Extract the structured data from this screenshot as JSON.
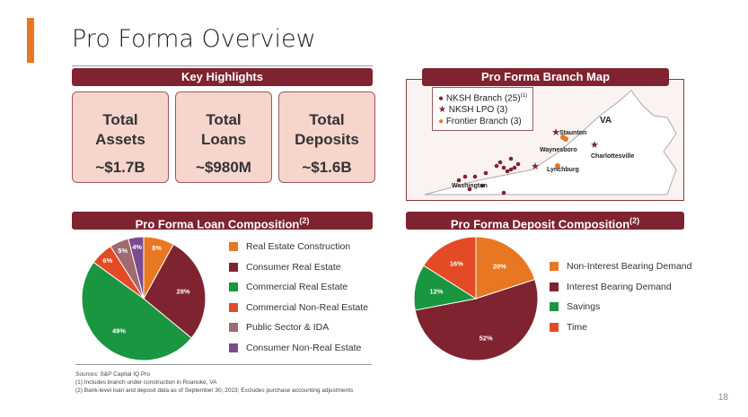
{
  "title": "Pro Forma Overview",
  "page_number": "18",
  "highlights": {
    "header": "Key Highlights",
    "items": [
      {
        "label1": "Total",
        "label2": "Assets",
        "value": "~$1.7B"
      },
      {
        "label1": "Total",
        "label2": "Loans",
        "value": "~$980M"
      },
      {
        "label1": "Total",
        "label2": "Deposits",
        "value": "~$1.6B"
      }
    ]
  },
  "map": {
    "header": "Pro Forma Branch Map",
    "legend": [
      {
        "label": "NKSH Branch (25)",
        "sup": "(1)",
        "color": "#7f2330"
      },
      {
        "label": "NKSH LPO (3)",
        "color": "#7f2330"
      },
      {
        "label": "Frontier Branch (3)",
        "color": "#e87722"
      }
    ],
    "labels": {
      "state": "VA",
      "staunton": "Staunton",
      "waynesboro": "Waynesboro",
      "charlottesville": "Charlottesville",
      "lynchburg": "Lynchburg",
      "washington": "Washington"
    }
  },
  "loan": {
    "header": "Pro Forma Loan Composition",
    "sup": "(2)"
  },
  "deposit": {
    "header": "Pro Forma Deposit Composition",
    "sup": "(2)"
  },
  "chart_data": [
    {
      "type": "pie",
      "title": "Pro Forma Loan Composition",
      "categories": [
        "Real Estate Construction",
        "Consumer Real Estate",
        "Commercial Real Estate",
        "Commercial Non-Real Estate",
        "Public Sector & IDA",
        "Consumer Non-Real Estate"
      ],
      "values": [
        8,
        28,
        49,
        6,
        5,
        4
      ],
      "labels": [
        "8%",
        "28%",
        "49%",
        "6%",
        "5%",
        "4%"
      ],
      "colors": [
        "#e87722",
        "#7f2330",
        "#1a9641",
        "#e34a26",
        "#a06a70",
        "#7b4a8f"
      ],
      "legend": "right"
    },
    {
      "type": "pie",
      "title": "Pro Forma Deposit Composition",
      "categories": [
        "Non-Interest Bearing Demand",
        "Interest Bearing Demand",
        "Savings",
        "Time"
      ],
      "values": [
        20,
        52,
        12,
        16
      ],
      "labels": [
        "20%",
        "52%",
        "12%",
        "16%"
      ],
      "colors": [
        "#e87722",
        "#7f2330",
        "#1a9641",
        "#e34a26"
      ],
      "legend": "right"
    }
  ],
  "footnotes": [
    "Sources: S&P Capital IQ Pro",
    "(1)    Includes branch under construction in Roanoke, VA",
    "(2)    Bank-level loan and deposit data as of September 30, 2023; Excludes purchase accounting adjustments"
  ]
}
